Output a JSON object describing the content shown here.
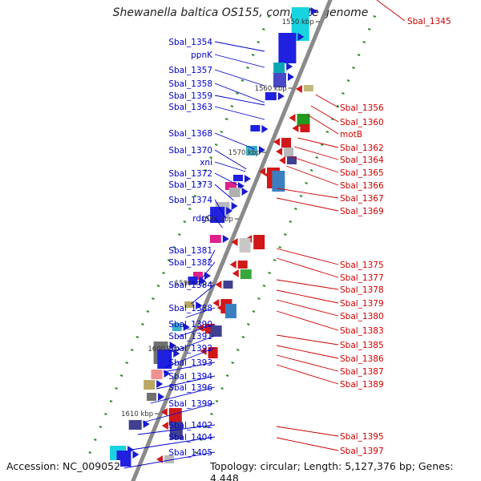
{
  "title": "Shewanella baltica OS155, complete genome",
  "footer": {
    "accession": "Accession: NC_009052",
    "topology": "Topology: circular; Length: 5,127,376 bp; Genes: 4,448"
  },
  "colors": {
    "left_label": "#0000cc",
    "right_label": "#cc0000",
    "backbone": "#888888",
    "tick": "#2e8b2e"
  },
  "kbp_markers": [
    "1550 kbp",
    "1560 kbp",
    "1570 kbp",
    "1580 kbp",
    "1590 kbp",
    "1600 kbp",
    "1610 kbp"
  ],
  "left_labels": [
    "Sbal_1354",
    "ppnK",
    "Sbal_1357",
    "Sbal_1358",
    "Sbal_1359",
    "Sbal_1363",
    "Sbal_1368",
    "Sbal_1370",
    "xni",
    "Sbal_1372",
    "Sbal_1373",
    "Sbal_1374",
    "rdgC",
    "Sbal_1381",
    "Sbal_1382",
    "Sbal_1384",
    "Sbal_1388",
    "Sbal_1390",
    "Sbal_1391",
    "Sbal_1392",
    "Sbal_1393",
    "Sbal_1394",
    "Sbal_1396",
    "Sbal_1399",
    "Sbal_1402",
    "Sbal_1404",
    "Sbal_1405"
  ],
  "right_labels": [
    "Sbal_1345",
    "Sbal_1356",
    "Sbal_1360",
    "motB",
    "Sbal_1362",
    "Sbal_1364",
    "Sbal_1365",
    "Sbal_1366",
    "Sbal_1367",
    "Sbal_1369",
    "Sbal_1375",
    "Sbal_1377",
    "Sbal_1378",
    "Sbal_1379",
    "Sbal_1380",
    "Sbal_1383",
    "Sbal_1385",
    "Sbal_1386",
    "Sbal_1387",
    "Sbal_1389",
    "Sbal_1395",
    "Sbal_1397"
  ]
}
